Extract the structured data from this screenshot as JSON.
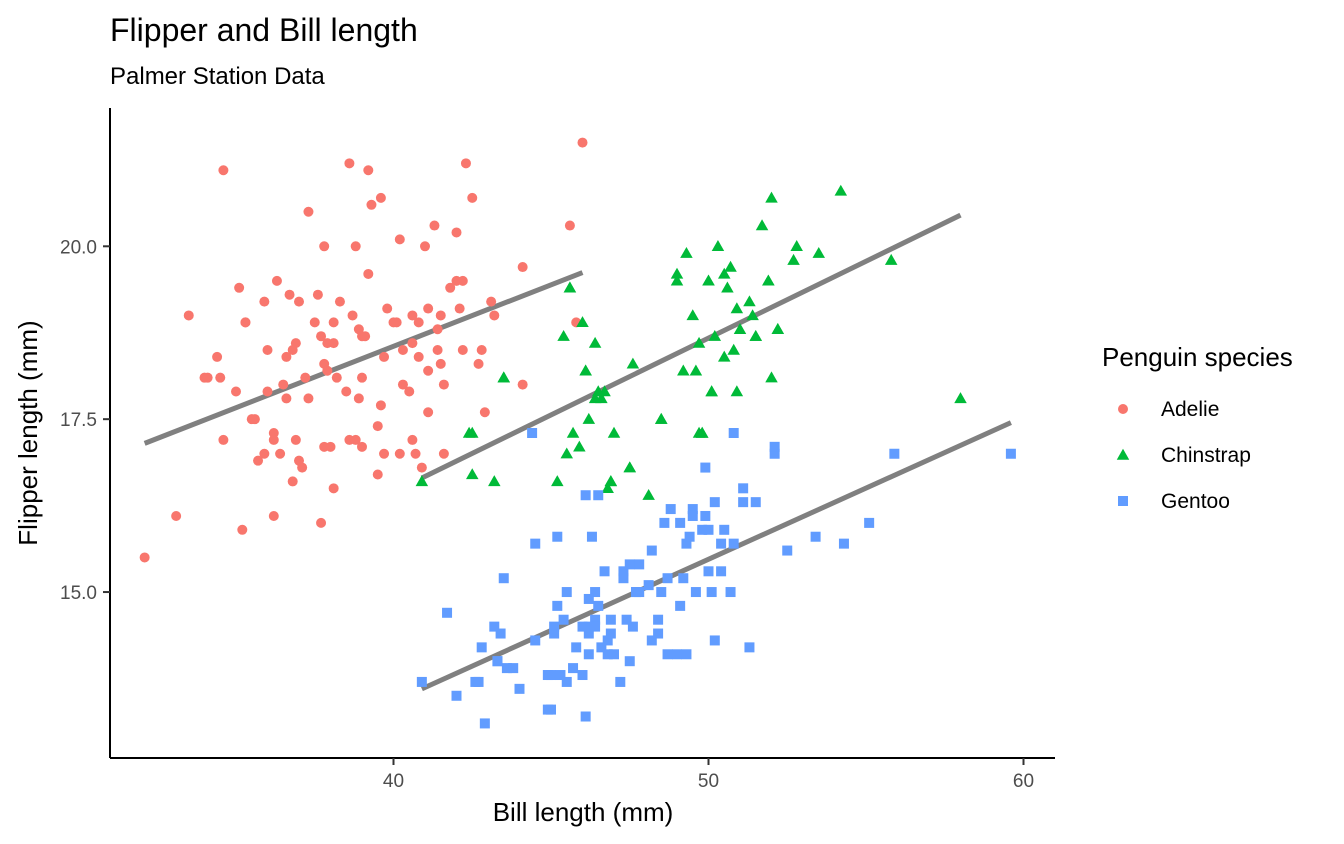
{
  "chart_data": {
    "type": "scatter",
    "title": "Flipper and Bill length",
    "subtitle": "Palmer Station Data",
    "xlabel": "Bill length (mm)",
    "ylabel": "Flipper length (mm)",
    "xlim": [
      31.0,
      61.0
    ],
    "ylim": [
      12.6,
      22.0
    ],
    "x_ticks": [
      40,
      50,
      60
    ],
    "x_tick_labels": [
      "40",
      "50",
      "60"
    ],
    "y_ticks": [
      15.0,
      17.5,
      20.0
    ],
    "y_tick_labels": [
      "15.0",
      "17.5",
      "20.0"
    ],
    "grid": false,
    "legend": {
      "title": "Penguin species",
      "position": "right"
    },
    "trend_line_color": "#808080",
    "series": [
      {
        "name": "Adelie",
        "color": "#F8766D",
        "marker": "circle",
        "trend": {
          "x": [
            32.1,
            46.0
          ],
          "y": [
            17.15,
            19.62
          ]
        },
        "points": [
          [
            32.1,
            15.5
          ],
          [
            33.1,
            16.1
          ],
          [
            33.5,
            19.0
          ],
          [
            34.0,
            18.1
          ],
          [
            34.4,
            18.4
          ],
          [
            34.5,
            18.1
          ],
          [
            34.6,
            21.1
          ],
          [
            34.6,
            17.2
          ],
          [
            35.1,
            19.4
          ],
          [
            35.3,
            18.9
          ],
          [
            35.5,
            17.5
          ],
          [
            35.7,
            16.9
          ],
          [
            35.9,
            19.2
          ],
          [
            36.0,
            17.9
          ],
          [
            36.2,
            17.3
          ],
          [
            36.3,
            19.5
          ],
          [
            36.4,
            17.0
          ],
          [
            36.5,
            18.0
          ],
          [
            36.6,
            17.8
          ],
          [
            36.7,
            19.3
          ],
          [
            36.8,
            18.5
          ],
          [
            36.9,
            18.6
          ],
          [
            37.0,
            16.9
          ],
          [
            37.2,
            18.1
          ],
          [
            37.3,
            20.5
          ],
          [
            37.6,
            19.3
          ],
          [
            37.7,
            18.7
          ],
          [
            37.8,
            17.1
          ],
          [
            37.9,
            18.6
          ],
          [
            38.1,
            18.6
          ],
          [
            38.2,
            18.1
          ],
          [
            38.3,
            19.2
          ],
          [
            38.6,
            21.2
          ],
          [
            38.6,
            17.2
          ],
          [
            38.7,
            19.0
          ],
          [
            38.8,
            17.2
          ],
          [
            38.9,
            18.8
          ],
          [
            39.0,
            17.1
          ],
          [
            39.1,
            18.7
          ],
          [
            39.2,
            21.1
          ],
          [
            39.3,
            20.6
          ],
          [
            39.5,
            17.4
          ],
          [
            39.6,
            17.7
          ],
          [
            39.7,
            18.4
          ],
          [
            39.8,
            19.1
          ],
          [
            40.1,
            18.9
          ],
          [
            40.2,
            20.1
          ],
          [
            40.3,
            18.0
          ],
          [
            40.5,
            17.9
          ],
          [
            40.6,
            19.0
          ],
          [
            40.7,
            17.0
          ],
          [
            40.8,
            18.4
          ],
          [
            40.9,
            16.8
          ],
          [
            41.1,
            18.2
          ],
          [
            41.3,
            20.3
          ],
          [
            41.4,
            18.5
          ],
          [
            41.5,
            18.3
          ],
          [
            41.6,
            18.0
          ],
          [
            41.8,
            19.4
          ],
          [
            42.0,
            20.2
          ],
          [
            42.1,
            19.1
          ],
          [
            42.2,
            18.5
          ],
          [
            42.3,
            21.2
          ],
          [
            42.5,
            20.7
          ],
          [
            42.7,
            18.3
          ],
          [
            42.8,
            18.5
          ],
          [
            42.9,
            17.6
          ],
          [
            43.2,
            19.0
          ],
          [
            44.1,
            19.7
          ],
          [
            45.6,
            20.3
          ],
          [
            46.0,
            21.5
          ],
          [
            34.1,
            18.1
          ],
          [
            35.0,
            17.9
          ],
          [
            35.2,
            15.9
          ],
          [
            35.6,
            17.5
          ],
          [
            36.0,
            18.5
          ],
          [
            36.2,
            16.1
          ],
          [
            36.6,
            18.4
          ],
          [
            36.8,
            16.6
          ],
          [
            37.0,
            19.2
          ],
          [
            37.1,
            16.8
          ],
          [
            37.3,
            17.8
          ],
          [
            37.5,
            18.9
          ],
          [
            37.7,
            16.0
          ],
          [
            37.8,
            20.0
          ],
          [
            38.0,
            17.1
          ],
          [
            38.1,
            16.5
          ],
          [
            38.5,
            17.9
          ],
          [
            38.8,
            20.0
          ],
          [
            39.0,
            18.7
          ],
          [
            39.2,
            19.6
          ],
          [
            39.5,
            16.7
          ],
          [
            39.6,
            20.7
          ],
          [
            40.0,
            18.9
          ],
          [
            40.3,
            18.5
          ],
          [
            40.6,
            18.6
          ],
          [
            41.0,
            20.0
          ],
          [
            41.1,
            17.6
          ],
          [
            41.4,
            18.8
          ],
          [
            41.5,
            19.0
          ],
          [
            41.6,
            17.0
          ],
          [
            42.0,
            19.5
          ],
          [
            42.2,
            19.5
          ],
          [
            43.1,
            19.2
          ],
          [
            44.1,
            18.0
          ],
          [
            45.8,
            18.9
          ],
          [
            39.7,
            17.0
          ],
          [
            36.9,
            17.2
          ],
          [
            35.3,
            18.9
          ],
          [
            37.8,
            18.3
          ],
          [
            38.9,
            17.8
          ],
          [
            40.8,
            18.9
          ],
          [
            39.0,
            18.1
          ],
          [
            41.1,
            19.1
          ],
          [
            40.2,
            17.0
          ],
          [
            35.9,
            17.0
          ],
          [
            38.1,
            18.9
          ],
          [
            40.6,
            17.2
          ],
          [
            36.2,
            17.2
          ],
          [
            37.9,
            18.2
          ]
        ]
      },
      {
        "name": "Chinstrap",
        "color": "#00BA38",
        "marker": "triangle",
        "trend": {
          "x": [
            40.9,
            58.0
          ],
          "y": [
            16.65,
            20.45
          ]
        },
        "points": [
          [
            40.9,
            16.6
          ],
          [
            42.4,
            17.3
          ],
          [
            42.5,
            16.7
          ],
          [
            42.5,
            17.3
          ],
          [
            43.2,
            16.6
          ],
          [
            43.5,
            18.1
          ],
          [
            45.2,
            16.6
          ],
          [
            45.4,
            18.7
          ],
          [
            45.5,
            17.0
          ],
          [
            45.6,
            19.4
          ],
          [
            45.7,
            17.3
          ],
          [
            45.9,
            17.1
          ],
          [
            46.0,
            18.9
          ],
          [
            46.1,
            18.2
          ],
          [
            46.2,
            17.5
          ],
          [
            46.4,
            17.8
          ],
          [
            46.5,
            17.9
          ],
          [
            46.6,
            17.8
          ],
          [
            46.7,
            17.9
          ],
          [
            46.8,
            16.5
          ],
          [
            46.9,
            16.6
          ],
          [
            47.0,
            17.3
          ],
          [
            47.5,
            16.8
          ],
          [
            47.6,
            18.3
          ],
          [
            48.1,
            16.4
          ],
          [
            48.5,
            17.5
          ],
          [
            49.0,
            19.6
          ],
          [
            49.2,
            18.2
          ],
          [
            49.3,
            19.9
          ],
          [
            49.5,
            19.0
          ],
          [
            49.6,
            18.2
          ],
          [
            49.7,
            17.3
          ],
          [
            49.8,
            17.3
          ],
          [
            50.0,
            19.5
          ],
          [
            50.1,
            17.9
          ],
          [
            50.2,
            18.7
          ],
          [
            50.3,
            20.0
          ],
          [
            50.5,
            18.4
          ],
          [
            50.6,
            19.4
          ],
          [
            50.7,
            19.7
          ],
          [
            50.8,
            18.5
          ],
          [
            50.9,
            17.9
          ],
          [
            51.0,
            18.8
          ],
          [
            51.3,
            19.2
          ],
          [
            51.4,
            19.0
          ],
          [
            51.5,
            18.7
          ],
          [
            51.7,
            20.3
          ],
          [
            51.9,
            19.5
          ],
          [
            52.0,
            20.7
          ],
          [
            52.0,
            18.1
          ],
          [
            52.2,
            18.8
          ],
          [
            52.7,
            19.8
          ],
          [
            52.8,
            20.0
          ],
          [
            53.5,
            19.9
          ],
          [
            54.2,
            20.8
          ],
          [
            55.8,
            19.8
          ],
          [
            58.0,
            17.8
          ],
          [
            46.4,
            18.6
          ],
          [
            49.0,
            19.5
          ],
          [
            50.9,
            19.1
          ],
          [
            45.6,
            19.4
          ],
          [
            50.1,
            17.9
          ],
          [
            47.5,
            16.8
          ],
          [
            50.0,
            19.5
          ],
          [
            51.5,
            18.7
          ],
          [
            48.5,
            17.5
          ],
          [
            49.7,
            18.6
          ],
          [
            46.9,
            16.6
          ],
          [
            51.9,
            19.5
          ],
          [
            50.5,
            19.6
          ],
          [
            43.5,
            18.1
          ],
          [
            46.1,
            18.2
          ],
          [
            49.8,
            17.3
          ],
          [
            52.2,
            18.8
          ]
        ]
      },
      {
        "name": "Gentoo",
        "color": "#619CFF",
        "marker": "square",
        "trend": {
          "x": [
            40.9,
            59.6
          ],
          "y": [
            13.6,
            17.45
          ]
        },
        "points": [
          [
            40.9,
            13.7
          ],
          [
            41.7,
            14.7
          ],
          [
            42.0,
            13.5
          ],
          [
            42.6,
            13.7
          ],
          [
            42.7,
            13.7
          ],
          [
            42.8,
            14.2
          ],
          [
            42.9,
            13.1
          ],
          [
            43.2,
            14.5
          ],
          [
            43.3,
            14.0
          ],
          [
            43.4,
            14.4
          ],
          [
            43.5,
            15.2
          ],
          [
            43.6,
            13.9
          ],
          [
            43.8,
            13.9
          ],
          [
            44.0,
            13.6
          ],
          [
            44.4,
            17.3
          ],
          [
            44.5,
            15.7
          ],
          [
            44.9,
            13.3
          ],
          [
            45.0,
            13.8
          ],
          [
            45.1,
            14.5
          ],
          [
            45.2,
            14.8
          ],
          [
            45.3,
            13.8
          ],
          [
            45.4,
            14.6
          ],
          [
            45.5,
            13.7
          ],
          [
            45.7,
            13.9
          ],
          [
            45.8,
            14.2
          ],
          [
            46.1,
            13.2
          ],
          [
            46.2,
            14.5
          ],
          [
            46.3,
            15.8
          ],
          [
            46.4,
            15.0
          ],
          [
            46.5,
            14.8
          ],
          [
            46.6,
            14.2
          ],
          [
            46.7,
            15.3
          ],
          [
            46.8,
            14.3
          ],
          [
            46.9,
            14.6
          ],
          [
            47.0,
            14.1
          ],
          [
            47.2,
            13.7
          ],
          [
            47.3,
            15.3
          ],
          [
            47.4,
            14.6
          ],
          [
            47.5,
            14.0
          ],
          [
            47.6,
            14.5
          ],
          [
            47.7,
            15.0
          ],
          [
            47.8,
            15.0
          ],
          [
            48.1,
            15.1
          ],
          [
            48.2,
            14.3
          ],
          [
            48.4,
            14.4
          ],
          [
            48.5,
            15.0
          ],
          [
            48.6,
            16.0
          ],
          [
            48.7,
            14.1
          ],
          [
            48.8,
            16.2
          ],
          [
            49.0,
            14.1
          ],
          [
            49.1,
            14.8
          ],
          [
            49.2,
            15.2
          ],
          [
            49.3,
            15.7
          ],
          [
            49.4,
            15.8
          ],
          [
            49.5,
            16.2
          ],
          [
            49.6,
            15.0
          ],
          [
            49.8,
            15.9
          ],
          [
            50.0,
            15.3
          ],
          [
            50.1,
            15.0
          ],
          [
            50.2,
            14.3
          ],
          [
            50.4,
            15.3
          ],
          [
            50.5,
            15.9
          ],
          [
            50.7,
            15.0
          ],
          [
            50.8,
            15.7
          ],
          [
            51.1,
            16.5
          ],
          [
            51.3,
            14.2
          ],
          [
            51.5,
            16.3
          ],
          [
            52.1,
            17.0
          ],
          [
            52.5,
            15.6
          ],
          [
            53.4,
            15.8
          ],
          [
            54.3,
            15.7
          ],
          [
            55.1,
            16.0
          ],
          [
            55.9,
            17.0
          ],
          [
            59.6,
            17.0
          ],
          [
            46.1,
            16.4
          ],
          [
            47.3,
            15.2
          ],
          [
            49.9,
            16.1
          ],
          [
            45.2,
            15.8
          ],
          [
            46.5,
            16.4
          ],
          [
            47.8,
            15.4
          ],
          [
            48.4,
            14.6
          ],
          [
            49.1,
            16.0
          ],
          [
            50.0,
            15.9
          ],
          [
            45.1,
            14.4
          ],
          [
            46.2,
            14.1
          ],
          [
            46.9,
            14.4
          ],
          [
            47.5,
            15.4
          ],
          [
            48.7,
            15.2
          ],
          [
            49.9,
            16.8
          ],
          [
            50.2,
            16.3
          ],
          [
            51.1,
            16.3
          ],
          [
            50.8,
            17.3
          ],
          [
            52.1,
            17.1
          ],
          [
            43.3,
            14.0
          ],
          [
            44.5,
            14.3
          ],
          [
            45.5,
            15.0
          ],
          [
            46.0,
            13.8
          ],
          [
            46.2,
            14.9
          ],
          [
            46.8,
            14.1
          ],
          [
            48.2,
            15.6
          ],
          [
            49.5,
            16.1
          ],
          [
            50.4,
            15.7
          ],
          [
            45.0,
            13.3
          ],
          [
            46.4,
            14.6
          ],
          [
            47.7,
            15.0
          ],
          [
            49.3,
            14.1
          ],
          [
            46.0,
            14.5
          ],
          [
            46.2,
            14.4
          ],
          [
            46.4,
            14.5
          ],
          [
            44.9,
            13.8
          ]
        ]
      }
    ]
  }
}
